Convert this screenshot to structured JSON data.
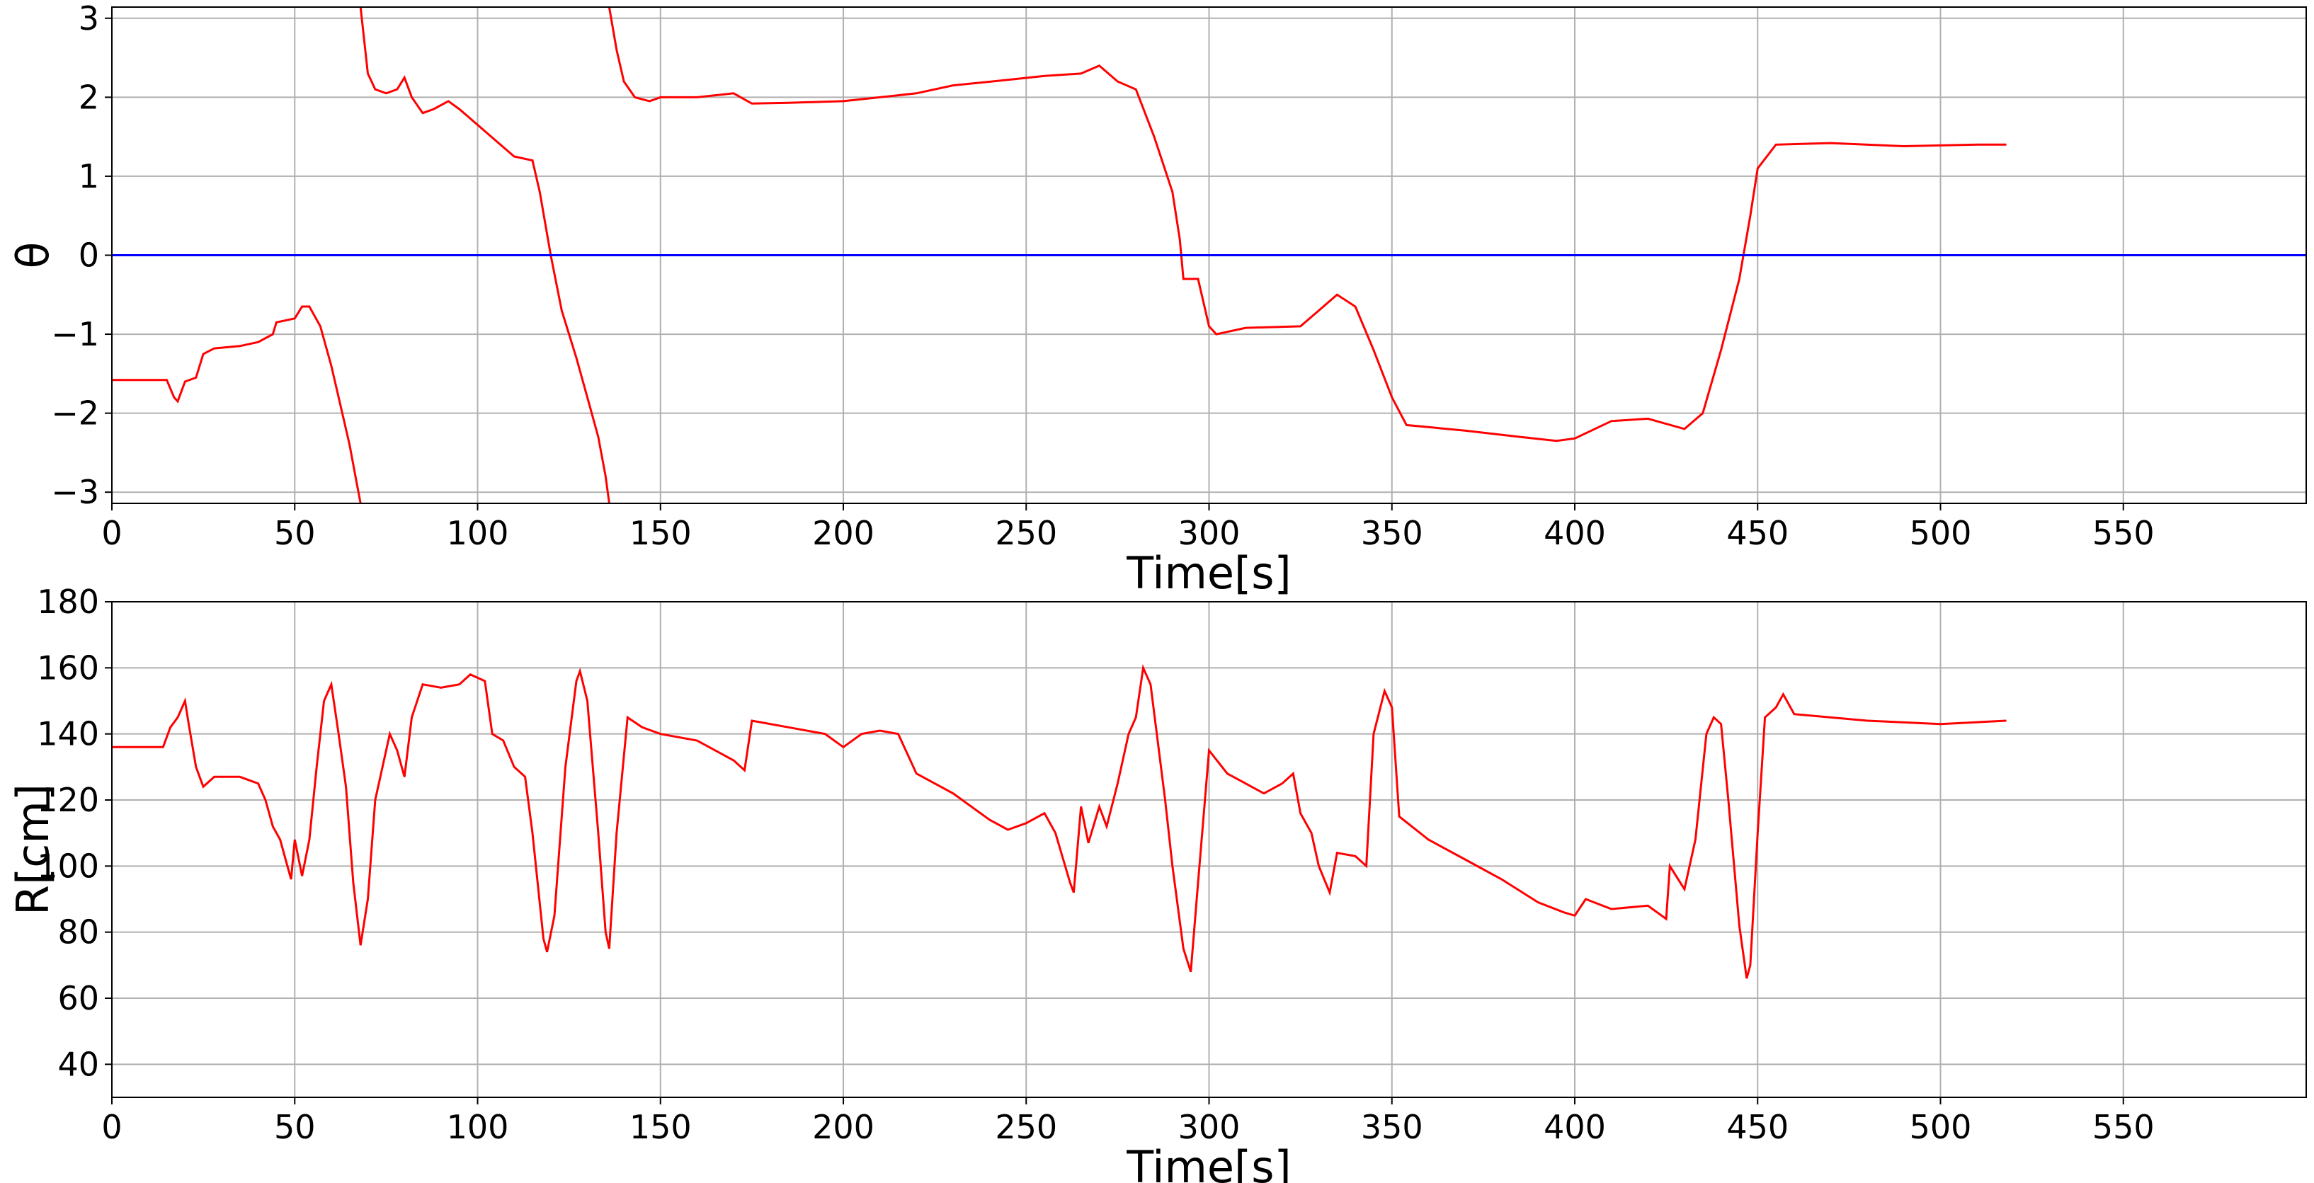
{
  "chart_data": [
    {
      "type": "line",
      "ylabel": "θ",
      "xlabel": "Time[s]",
      "grid": true,
      "xlim": [
        0,
        600
      ],
      "xticks": [
        0,
        50,
        100,
        150,
        200,
        250,
        300,
        350,
        400,
        450,
        500,
        550
      ],
      "ylim": [
        -3.14159,
        3.14159
      ],
      "yticks": [
        {
          "value": -3,
          "label": "−3"
        },
        {
          "value": -2,
          "label": "−2"
        },
        {
          "value": -1,
          "label": "−1"
        },
        0,
        1,
        2,
        3
      ],
      "series": [
        {
          "color": "#ff0000",
          "x": [
            0,
            15,
            17,
            18,
            20,
            23,
            25,
            28,
            35,
            40,
            44,
            45,
            50,
            52,
            54,
            57,
            60,
            63,
            65,
            67,
            68,
            68,
            68,
            70,
            72,
            75,
            78,
            80,
            82,
            85,
            88,
            92,
            95,
            100,
            105,
            110,
            115,
            117,
            120,
            123,
            127,
            130,
            133,
            135,
            136,
            136,
            136,
            138,
            140,
            143,
            147,
            150,
            160,
            170,
            175,
            185,
            200,
            210,
            220,
            230,
            245,
            255,
            265,
            270,
            275,
            280,
            285,
            290,
            292,
            293,
            297,
            300,
            302,
            310,
            325,
            330,
            335,
            340,
            345,
            350,
            354,
            370,
            385,
            395,
            400,
            410,
            420,
            430,
            435,
            440,
            445,
            448,
            450,
            455,
            470,
            490,
            510,
            518
          ],
          "values": [
            -1.58,
            -1.58,
            -1.8,
            -1.85,
            -1.6,
            -1.55,
            -1.25,
            -1.18,
            -1.15,
            -1.1,
            -1.0,
            -0.85,
            -0.8,
            -0.65,
            -0.65,
            -0.9,
            -1.4,
            -2.0,
            -2.4,
            -2.9,
            -3.14,
            null,
            3.14,
            2.3,
            2.1,
            2.05,
            2.1,
            2.25,
            2.0,
            1.8,
            1.85,
            1.95,
            1.85,
            1.65,
            1.45,
            1.25,
            1.2,
            0.8,
            0.0,
            -0.7,
            -1.3,
            -1.8,
            -2.3,
            -2.8,
            -3.14,
            null,
            3.14,
            2.6,
            2.2,
            2.0,
            1.95,
            2.0,
            2.0,
            2.05,
            1.92,
            1.93,
            1.95,
            2.0,
            2.05,
            2.15,
            2.22,
            2.27,
            2.3,
            2.4,
            2.2,
            2.1,
            1.5,
            0.8,
            0.2,
            -0.3,
            -0.3,
            -0.9,
            -1.0,
            -0.92,
            -0.9,
            -0.7,
            -0.5,
            -0.65,
            -1.2,
            -1.8,
            -2.15,
            -2.22,
            -2.3,
            -2.35,
            -2.32,
            -2.1,
            -2.07,
            -2.2,
            -2.0,
            -1.2,
            -0.3,
            0.5,
            1.1,
            1.4,
            1.42,
            1.38,
            1.4,
            1.4
          ]
        },
        {
          "color": "#0000ff",
          "x": [
            0,
            600
          ],
          "values": [
            0,
            0
          ]
        }
      ]
    },
    {
      "type": "line",
      "ylabel": "R[cm]",
      "xlabel": "Time[s]",
      "grid": true,
      "xlim": [
        0,
        600
      ],
      "xticks": [
        0,
        50,
        100,
        150,
        200,
        250,
        300,
        350,
        400,
        450,
        500,
        550
      ],
      "ylim": [
        30,
        180
      ],
      "yticks": [
        40,
        60,
        80,
        100,
        120,
        140,
        160,
        180
      ],
      "series": [
        {
          "color": "#ff0000",
          "x": [
            0,
            14,
            16,
            18,
            20,
            21,
            23,
            25,
            28,
            35,
            40,
            42,
            44,
            46,
            48,
            49,
            50,
            52,
            54,
            56,
            58,
            60,
            62,
            64,
            66,
            68,
            70,
            72,
            74,
            76,
            78,
            80,
            82,
            85,
            90,
            95,
            98,
            102,
            104,
            107,
            110,
            113,
            115,
            118,
            119,
            121,
            124,
            127,
            128,
            130,
            133,
            135,
            136,
            138,
            141,
            145,
            150,
            160,
            170,
            173,
            175,
            185,
            195,
            200,
            205,
            210,
            215,
            220,
            230,
            240,
            245,
            250,
            255,
            258,
            262,
            263,
            265,
            267,
            270,
            272,
            275,
            278,
            280,
            282,
            284,
            288,
            290,
            293,
            295,
            297,
            300,
            305,
            315,
            320,
            323,
            325,
            328,
            330,
            333,
            335,
            340,
            343,
            345,
            348,
            350,
            352,
            360,
            370,
            380,
            390,
            397,
            400,
            403,
            410,
            420,
            425,
            426,
            430,
            433,
            436,
            438,
            440,
            442,
            445,
            447,
            448,
            450,
            452,
            455,
            457,
            460,
            480,
            500,
            518
          ],
          "values": [
            136,
            136,
            142,
            145,
            150,
            143,
            130,
            124,
            127,
            127,
            125,
            120,
            112,
            108,
            100,
            96,
            108,
            97,
            108,
            130,
            150,
            155,
            140,
            124,
            95,
            76,
            90,
            120,
            130,
            140,
            135,
            127,
            145,
            155,
            154,
            155,
            158,
            156,
            140,
            138,
            130,
            127,
            110,
            78,
            74,
            85,
            130,
            156,
            159,
            150,
            110,
            80,
            75,
            110,
            145,
            142,
            140,
            138,
            132,
            129,
            144,
            142,
            140,
            136,
            140,
            141,
            140,
            128,
            122,
            114,
            111,
            113,
            116,
            110,
            95,
            92,
            118,
            107,
            118,
            112,
            125,
            140,
            145,
            160,
            155,
            120,
            100,
            75,
            68,
            95,
            135,
            128,
            122,
            125,
            128,
            116,
            110,
            100,
            92,
            104,
            103,
            100,
            140,
            153,
            148,
            115,
            108,
            102,
            96,
            89,
            86,
            85,
            90,
            87,
            88,
            84,
            100,
            93,
            108,
            140,
            145,
            143,
            120,
            82,
            66,
            70,
            110,
            145,
            148,
            152,
            146,
            144,
            143,
            144
          ]
        }
      ]
    }
  ]
}
